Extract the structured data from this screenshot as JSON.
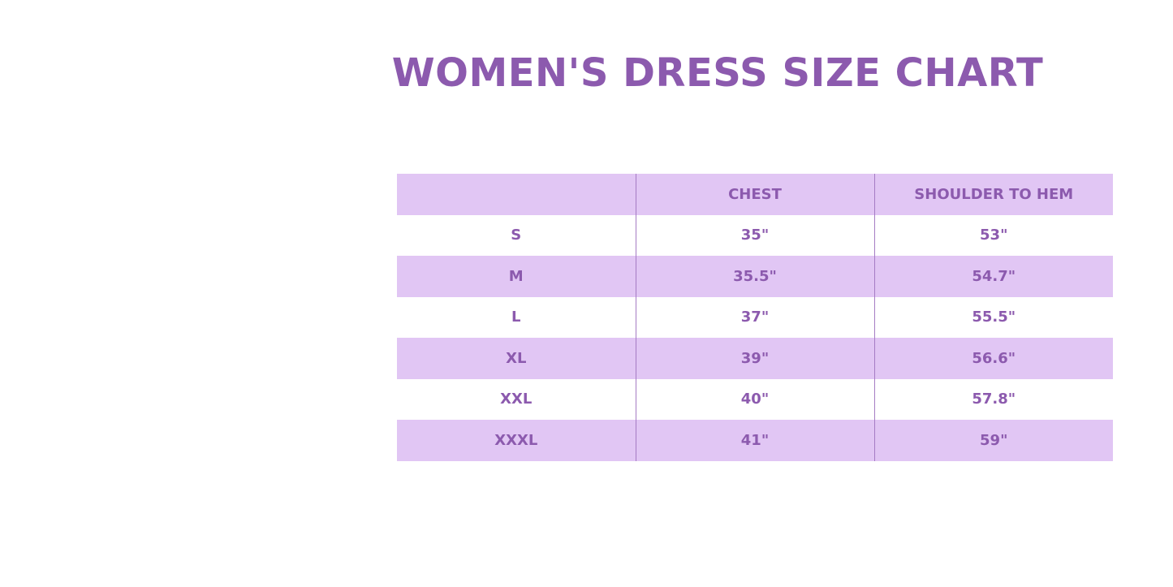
{
  "title": "WOMEN'S DRESS SIZE CHART",
  "colors": {
    "accent": "#8c5aae",
    "row_fill": "#e1c6f4"
  },
  "table": {
    "headers": [
      "",
      "CHEST",
      "SHOULDER TO HEM"
    ],
    "rows": [
      [
        "S",
        "35\"",
        "53\""
      ],
      [
        "M",
        "35.5\"",
        "54.7\""
      ],
      [
        "L",
        "37\"",
        "55.5\""
      ],
      [
        "XL",
        "39\"",
        "56.6\""
      ],
      [
        "XXL",
        "40\"",
        "57.8\""
      ],
      [
        "XXXL",
        "41\"",
        "59\""
      ]
    ]
  }
}
